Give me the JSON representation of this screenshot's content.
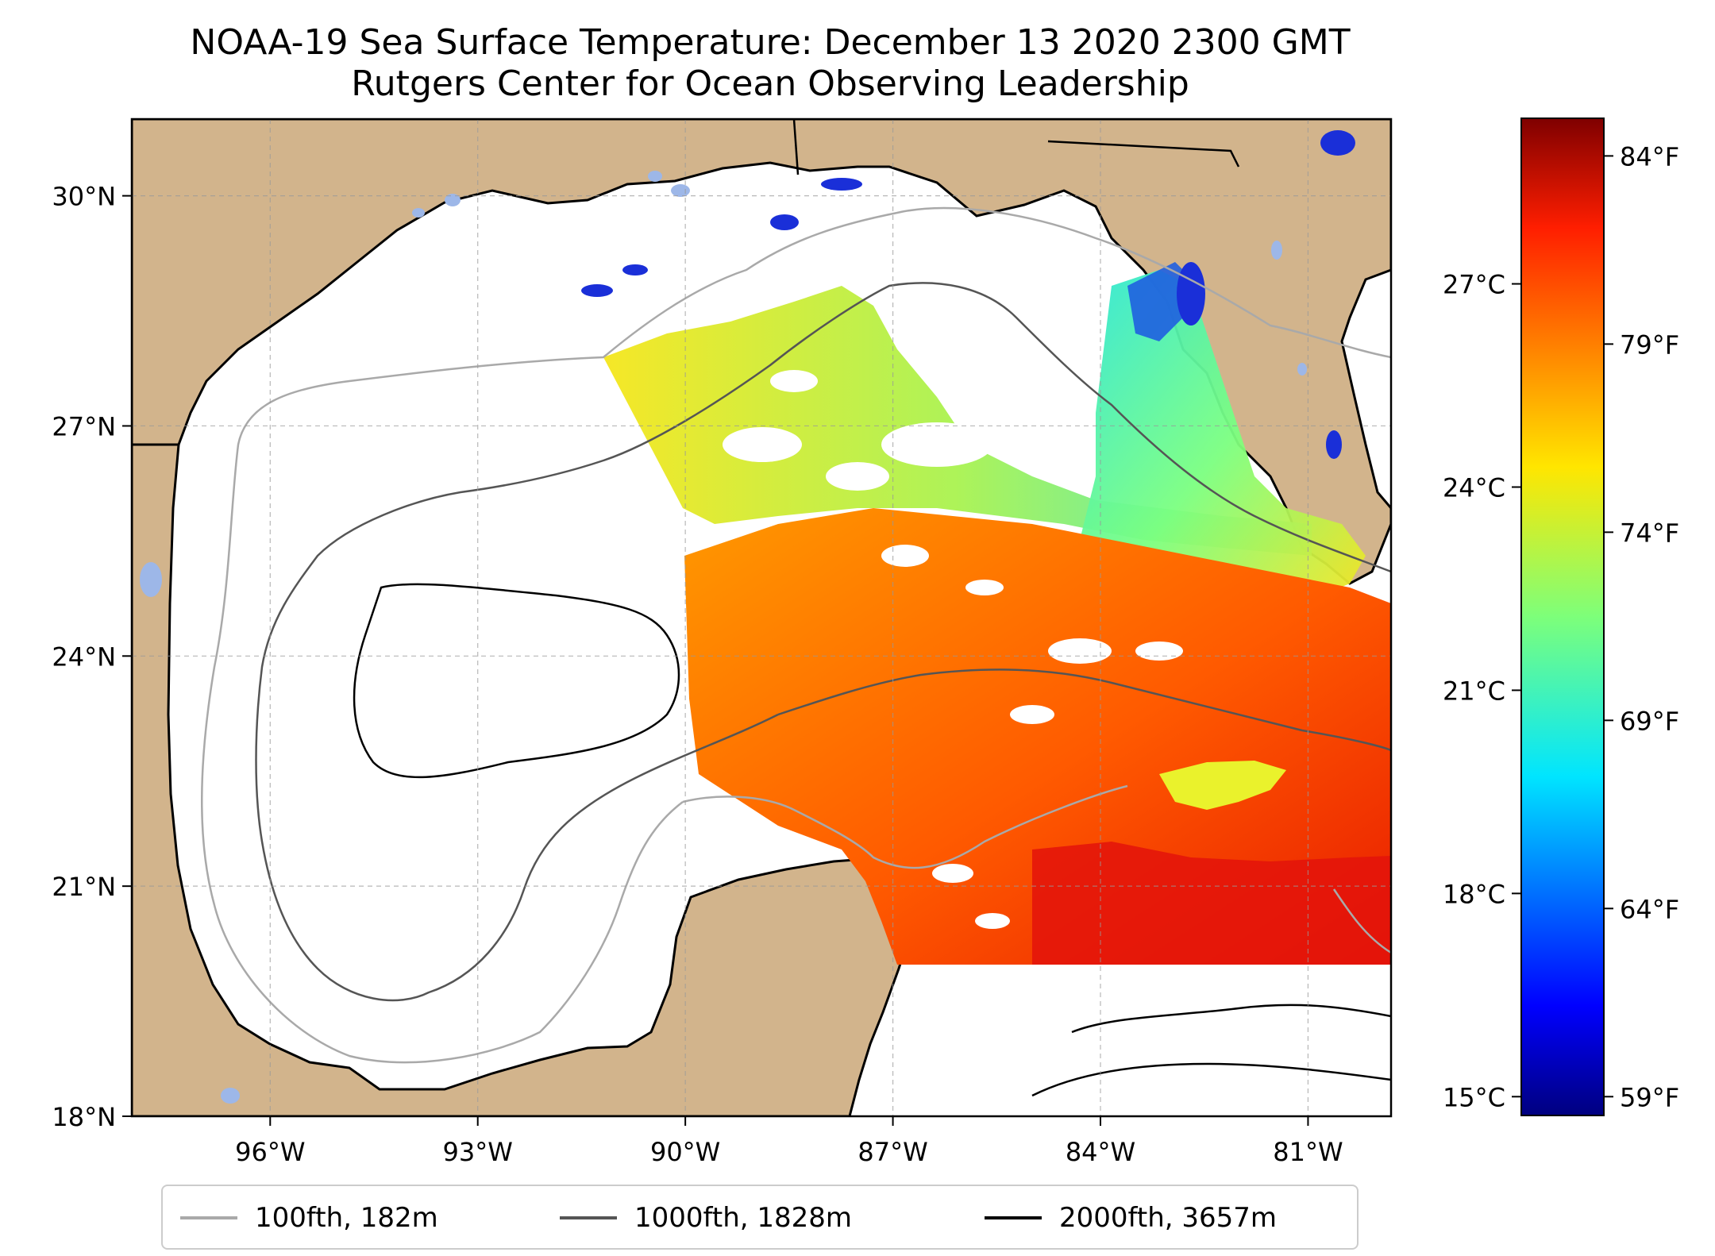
{
  "title": {
    "line1": "NOAA-19 Sea Surface Temperature: December 13 2020 2300 GMT",
    "line2": "Rutgers Center for Ocean Observing Leadership"
  },
  "map": {
    "lon_range": [
      -98,
      -79.8
    ],
    "lat_range": [
      18,
      31
    ],
    "land_color": "#d2b48c",
    "lake_color": "#9db7e8",
    "lon_ticks": [
      {
        "value": -96,
        "label": "96°W"
      },
      {
        "value": -93,
        "label": "93°W"
      },
      {
        "value": -90,
        "label": "90°W"
      },
      {
        "value": -87,
        "label": "87°W"
      },
      {
        "value": -84,
        "label": "84°W"
      },
      {
        "value": -81,
        "label": "81°W"
      }
    ],
    "lat_ticks": [
      {
        "value": 30,
        "label": "30°N"
      },
      {
        "value": 27,
        "label": "27°N"
      },
      {
        "value": 24,
        "label": "24°N"
      },
      {
        "value": 21,
        "label": "21°N"
      },
      {
        "value": 18,
        "label": "18°N"
      }
    ]
  },
  "colorbar": {
    "colormap": "jet",
    "celsius_ticks": [
      "27°C",
      "24°C",
      "21°C",
      "18°C",
      "15°C"
    ],
    "fahrenheit_ticks": [
      "84°F",
      "79°F",
      "74°F",
      "69°F",
      "64°F",
      "59°F"
    ],
    "range_f": [
      58.5,
      85
    ]
  },
  "legend": {
    "items": [
      {
        "label": "100fth, 182m",
        "color": "#a9a9a9"
      },
      {
        "label": "1000fth, 1828m",
        "color": "#555555"
      },
      {
        "label": "2000fth, 3657m",
        "color": "#000000"
      }
    ]
  }
}
